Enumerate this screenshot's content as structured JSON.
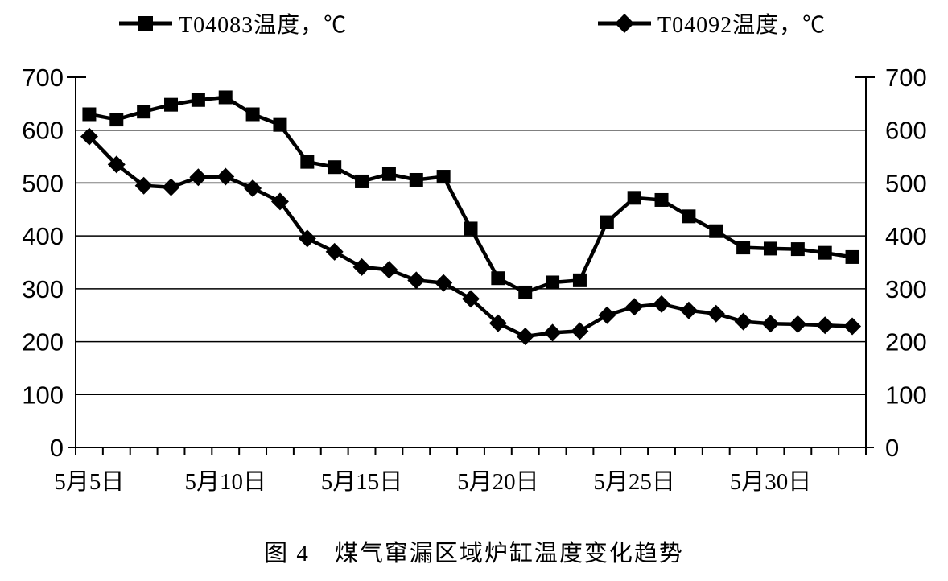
{
  "page": {
    "background": "#ffffff"
  },
  "colors": {
    "series": "#000000",
    "axis": "#000000",
    "grid": "#000000",
    "text": "#000000"
  },
  "legend": {
    "entries": [
      {
        "label": "T04083温度，℃",
        "marker": "square"
      },
      {
        "label": "T04092温度，℃",
        "marker": "diamond"
      }
    ]
  },
  "chart_data": {
    "type": "line",
    "title": "",
    "legend_position": "top",
    "grid": true,
    "categories": [
      "5月5日",
      "5月6日",
      "5月7日",
      "5月8日",
      "5月9日",
      "5月10日",
      "5月11日",
      "5月12日",
      "5月13日",
      "5月14日",
      "5月15日",
      "5月16日",
      "5月17日",
      "5月18日",
      "5月19日",
      "5月20日",
      "5月21日",
      "5月22日",
      "5月23日",
      "5月24日",
      "5月25日",
      "5月26日",
      "5月27日",
      "5月28日",
      "5月29日",
      "5月30日",
      "5月31日",
      "6月1日",
      "6月2日"
    ],
    "x_axis": {
      "shown": [
        {
          "index": 0,
          "label": "5月5日"
        },
        {
          "index": 5,
          "label": "5月10日"
        },
        {
          "index": 10,
          "label": "5月15日"
        },
        {
          "index": 15,
          "label": "5月20日"
        },
        {
          "index": 20,
          "label": "5月25日"
        },
        {
          "index": 25,
          "label": "5月30日"
        }
      ]
    },
    "y_axis": {
      "min": 0,
      "max": 700,
      "step": 100,
      "tick_labels": [
        "0",
        "100",
        "200",
        "300",
        "400",
        "500",
        "600",
        "700"
      ],
      "sides": [
        "left",
        "right"
      ]
    },
    "series": [
      {
        "name": "T04083温度，℃",
        "marker": "square",
        "color": "#000000",
        "values": [
          630,
          620,
          635,
          648,
          657,
          662,
          630,
          610,
          540,
          530,
          503,
          517,
          506,
          512,
          414,
          320,
          293,
          312,
          316,
          426,
          472,
          468,
          437,
          409,
          378,
          376,
          375,
          368,
          360
        ]
      },
      {
        "name": "T04092温度，℃",
        "marker": "diamond",
        "color": "#000000",
        "values": [
          588,
          535,
          495,
          492,
          511,
          512,
          490,
          465,
          395,
          370,
          341,
          336,
          316,
          311,
          281,
          235,
          210,
          217,
          220,
          250,
          266,
          271,
          259,
          253,
          238,
          234,
          233,
          231,
          229
        ]
      }
    ]
  },
  "caption": "图 4　煤气窜漏区域炉缸温度变化趋势"
}
